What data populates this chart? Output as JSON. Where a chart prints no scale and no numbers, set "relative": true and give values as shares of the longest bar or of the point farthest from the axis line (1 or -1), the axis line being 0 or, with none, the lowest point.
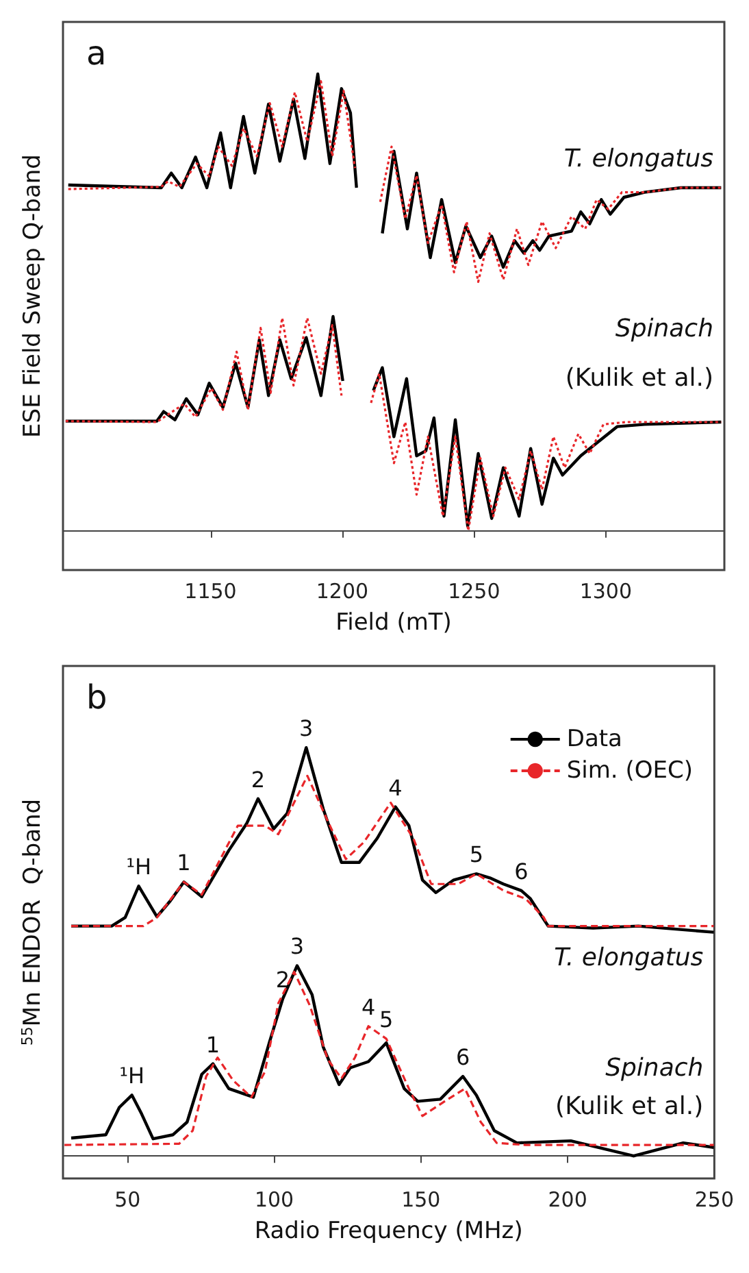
{
  "chart_data": [
    {
      "type": "line",
      "title": "a",
      "xlabel": "Field (mT)",
      "ylabel": "ESE Field Sweep Q-band",
      "relative": true,
      "xlim": [
        1094,
        1345
      ],
      "xticks": [
        1150,
        1200,
        1250,
        1300
      ],
      "grid": false,
      "legend": false,
      "marker": "none",
      "annotations": [
        "T. elongatus",
        "Spinach",
        "(Kulik et al.)"
      ],
      "series": [
        {
          "color": "#000000",
          "line_style": "solid",
          "x": [
            1096,
            1131.3,
            1135.1,
            1139.1,
            1144.3,
            1148.6,
            1153.8,
            1157.6,
            1162.5,
            1166.8,
            1172,
            1176.3,
            1181.5,
            1185.8,
            1190.7,
            1195.3,
            1199.7,
            1203.1,
            1205.4,
            1210,
            1215.2,
            1219.6,
            1224.7,
            1228.2,
            1233.4,
            1237.7,
            1242.9,
            1246.9,
            1252.4,
            1256.7,
            1261.1,
            1265.4,
            1268.9,
            1272.3,
            1274.9,
            1278.4,
            1287,
            1290.5,
            1293.9,
            1298.3,
            1301.7,
            1306.9,
            1314.7,
            1328.5,
            1343.8
          ],
          "values": [
            0.757,
            0.751,
            0.783,
            0.751,
            0.818,
            0.751,
            0.871,
            0.751,
            0.907,
            0.783,
            0.934,
            0.809,
            0.945,
            0.815,
            1.0,
            0.804,
            0.968,
            0.915,
            0.751,
            null,
            0.651,
            0.831,
            0.661,
            0.783,
            0.598,
            0.725,
            0.587,
            0.667,
            0.598,
            0.645,
            0.577,
            0.635,
            0.608,
            0.635,
            0.614,
            0.645,
            0.656,
            0.698,
            0.672,
            0.725,
            0.693,
            0.73,
            0.741,
            0.751,
            0.751
          ]
        },
        {
          "color": "#e8262a",
          "line_style": "dotted",
          "x": [
            1096,
            1131.3,
            1133.9,
            1138.2,
            1144.8,
            1149.5,
            1152.9,
            1158.1,
            1162.5,
            1167.6,
            1172.5,
            1177.2,
            1182,
            1186.7,
            1191.9,
            1196.2,
            1200.5,
            1204.8,
            1210,
            1214.4,
            1218.7,
            1223.9,
            1228.2,
            1232.5,
            1237.7,
            1242.4,
            1247.2,
            1251.6,
            1255.9,
            1261.1,
            1266.3,
            1270.6,
            1275.8,
            1281,
            1287,
            1292.2,
            1296.5,
            1300.9,
            1306.1,
            1314.7,
            1328.5,
            1343.8
          ],
          "values": [
            0.748,
            0.753,
            0.765,
            0.753,
            0.804,
            0.776,
            0.841,
            0.799,
            0.881,
            0.82,
            0.936,
            0.841,
            0.96,
            0.852,
            0.984,
            0.82,
            0.963,
            0.794,
            null,
            0.72,
            0.841,
            0.683,
            0.778,
            0.63,
            0.714,
            0.566,
            0.677,
            0.545,
            0.651,
            0.55,
            0.661,
            0.582,
            0.677,
            0.619,
            0.688,
            0.661,
            0.725,
            0.704,
            0.741,
            0.741,
            0.751,
            0.751
          ]
        },
        {
          "color": "#000000",
          "line_style": "solid",
          "x": [
            1095,
            1129.6,
            1132.2,
            1136.5,
            1140.8,
            1145.2,
            1149.5,
            1154.7,
            1159.5,
            1164.2,
            1168.5,
            1172,
            1176.3,
            1180.6,
            1186.3,
            1191.9,
            1196.5,
            1200.2,
            1206,
            1211.8,
            1215.2,
            1219.6,
            1224.4,
            1228.2,
            1231.7,
            1234.8,
            1238.6,
            1242.9,
            1247.6,
            1251.6,
            1256.7,
            1261.1,
            1267.1,
            1271.5,
            1275.8,
            1280.1,
            1283.6,
            1290.5,
            1297.4,
            1304.3,
            1314.7,
            1343.8
          ],
          "values": [
            0.24,
            0.24,
            0.261,
            0.243,
            0.289,
            0.254,
            0.323,
            0.27,
            0.367,
            0.27,
            0.418,
            0.296,
            0.418,
            0.333,
            0.423,
            0.296,
            0.469,
            0.328,
            null,
            0.307,
            0.357,
            0.206,
            0.333,
            0.164,
            0.175,
            0.247,
            0.032,
            0.243,
            0.01,
            0.169,
            0.027,
            0.138,
            0.032,
            0.18,
            0.058,
            0.159,
            0.122,
            0.164,
            0.196,
            0.228,
            0.233,
            0.238
          ]
        },
        {
          "color": "#e8262a",
          "line_style": "dotted",
          "x": [
            1095,
            1129.6,
            1140,
            1144.3,
            1150.3,
            1154.7,
            1159.9,
            1164.2,
            1169,
            1172.8,
            1177.2,
            1181.5,
            1186.7,
            1191.9,
            1196.2,
            1199.7,
            1205,
            1210.9,
            1214,
            1219.6,
            1223.9,
            1228.2,
            1232.5,
            1238.2,
            1242.9,
            1247.8,
            1252.4,
            1257.3,
            1261.9,
            1267.1,
            1271.5,
            1275.8,
            1280.1,
            1284.4,
            1289.6,
            1293.9,
            1299.1,
            1307.8,
            1343.8
          ],
          "values": [
            0.24,
            0.238,
            0.278,
            0.249,
            0.312,
            0.265,
            0.392,
            0.265,
            0.444,
            0.302,
            0.466,
            0.318,
            0.466,
            0.344,
            0.45,
            0.296,
            null,
            0.28,
            0.344,
            0.148,
            0.238,
            0.079,
            0.206,
            0.032,
            0.206,
            0.0,
            0.159,
            0.032,
            0.138,
            0.069,
            0.175,
            0.09,
            0.206,
            0.138,
            0.212,
            0.169,
            0.233,
            0.238,
            0.238
          ]
        }
      ]
    },
    {
      "type": "line",
      "title": "b",
      "xlabel": "Radio Frequency (MHz)",
      "ylabel": "$^{55}$Mn ENDOR  Q-band",
      "relative": true,
      "xlim": [
        28,
        250
      ],
      "xticks": [
        50,
        100,
        150,
        200,
        250
      ],
      "grid": false,
      "legend": "top right",
      "marker": "none",
      "annotations": [
        {
          "text": "¹H",
          "x": 53.8,
          "y": 0.661
        },
        {
          "text": "1",
          "x": 69.2,
          "y": 0.671
        },
        {
          "text": "2",
          "x": 94.5,
          "y": 0.875
        },
        {
          "text": "3",
          "x": 110.9,
          "y": 1.0
        },
        {
          "text": "4",
          "x": 141.3,
          "y": 0.855
        },
        {
          "text": "5",
          "x": 168.9,
          "y": 0.691
        },
        {
          "text": "6",
          "x": 184.2,
          "y": 0.65
        },
        {
          "text": "¹H",
          "x": 51.5,
          "y": 0.149
        },
        {
          "text": "1",
          "x": 79.1,
          "y": 0.226
        },
        {
          "text": "2",
          "x": 102.9,
          "y": 0.385
        },
        {
          "text": "3",
          "x": 107.8,
          "y": 0.466
        },
        {
          "text": "4",
          "x": 132.1,
          "y": 0.318
        },
        {
          "text": "5",
          "x": 138.2,
          "y": 0.287
        },
        {
          "text": "6",
          "x": 164.3,
          "y": 0.195
        },
        "T. elongatus",
        "Spinach",
        "(Kulik et al.)"
      ],
      "series": [
        {
          "name": "Data",
          "color": "#000000",
          "line_style": "solid",
          "x": [
            30.8,
            44.6,
            49.2,
            53.8,
            60,
            64.6,
            69.2,
            75.3,
            84.5,
            90.6,
            94.5,
            99.8,
            104.4,
            110.9,
            116.7,
            122.9,
            129,
            135.1,
            141.3,
            145.9,
            150.5,
            155.1,
            161.2,
            168.9,
            173.5,
            178.1,
            184.2,
            187.3,
            191.9,
            193.4,
            208.7,
            224.1,
            249.8
          ],
          "values": [
            0.563,
            0.563,
            0.584,
            0.661,
            0.586,
            0.625,
            0.671,
            0.635,
            0.748,
            0.814,
            0.875,
            0.801,
            0.839,
            1.0,
            0.85,
            0.719,
            0.719,
            0.778,
            0.855,
            0.809,
            0.676,
            0.645,
            0.676,
            0.691,
            0.681,
            0.666,
            0.65,
            0.63,
            0.579,
            0.563,
            0.558,
            0.563,
            0.548
          ]
        },
        {
          "name": "Sim. (OEC)",
          "color": "#e8262a",
          "line_style": "dashed",
          "x": [
            30.8,
            55.4,
            60,
            69.2,
            75.3,
            87.6,
            96.8,
            101.4,
            111.3,
            118.3,
            124.4,
            130.5,
            139.7,
            147.4,
            153.5,
            162.7,
            168.9,
            178.1,
            185.7,
            191.9,
            193.4,
            249.8
          ],
          "values": [
            0.563,
            0.563,
            0.584,
            0.671,
            0.64,
            0.809,
            0.809,
            0.788,
            0.931,
            0.819,
            0.727,
            0.768,
            0.865,
            0.778,
            0.666,
            0.666,
            0.691,
            0.65,
            0.63,
            0.584,
            0.563,
            0.563
          ]
        },
        {
          "color": "#000000",
          "line_style": "solid",
          "x": [
            30.8,
            42.6,
            47.2,
            51.5,
            54.8,
            58.7,
            65.5,
            70.3,
            75.3,
            79.1,
            84.5,
            92.9,
            98.3,
            102.9,
            107.8,
            112.9,
            116.7,
            122.1,
            125.9,
            132.1,
            138.2,
            144.3,
            148.9,
            156.6,
            164.3,
            168.9,
            175,
            182.7,
            201.1,
            222.5,
            239.4,
            249.8
          ],
          "values": [
            0.044,
            0.052,
            0.119,
            0.149,
            0.103,
            0.042,
            0.052,
            0.083,
            0.2,
            0.226,
            0.165,
            0.144,
            0.277,
            0.385,
            0.466,
            0.395,
            0.267,
            0.175,
            0.216,
            0.231,
            0.277,
            0.165,
            0.134,
            0.139,
            0.195,
            0.149,
            0.062,
            0.032,
            0.037,
            0.0,
            0.032,
            0.021
          ]
        },
        {
          "color": "#e8262a",
          "line_style": "dashed",
          "x": [
            28.5,
            67.6,
            72.2,
            76.8,
            80.7,
            86,
            92.2,
            96.8,
            101.4,
            106.8,
            112.1,
            118.3,
            122.9,
            127.5,
            132.1,
            138.2,
            145.9,
            150.5,
            158.1,
            165,
            170.4,
            175.8,
            185.7,
            249.8
          ],
          "values": [
            0.027,
            0.03,
            0.062,
            0.195,
            0.241,
            0.185,
            0.144,
            0.206,
            0.374,
            0.451,
            0.369,
            0.236,
            0.19,
            0.241,
            0.318,
            0.287,
            0.165,
            0.098,
            0.134,
            0.165,
            0.083,
            0.032,
            0.027,
            0.027
          ]
        }
      ]
    }
  ]
}
